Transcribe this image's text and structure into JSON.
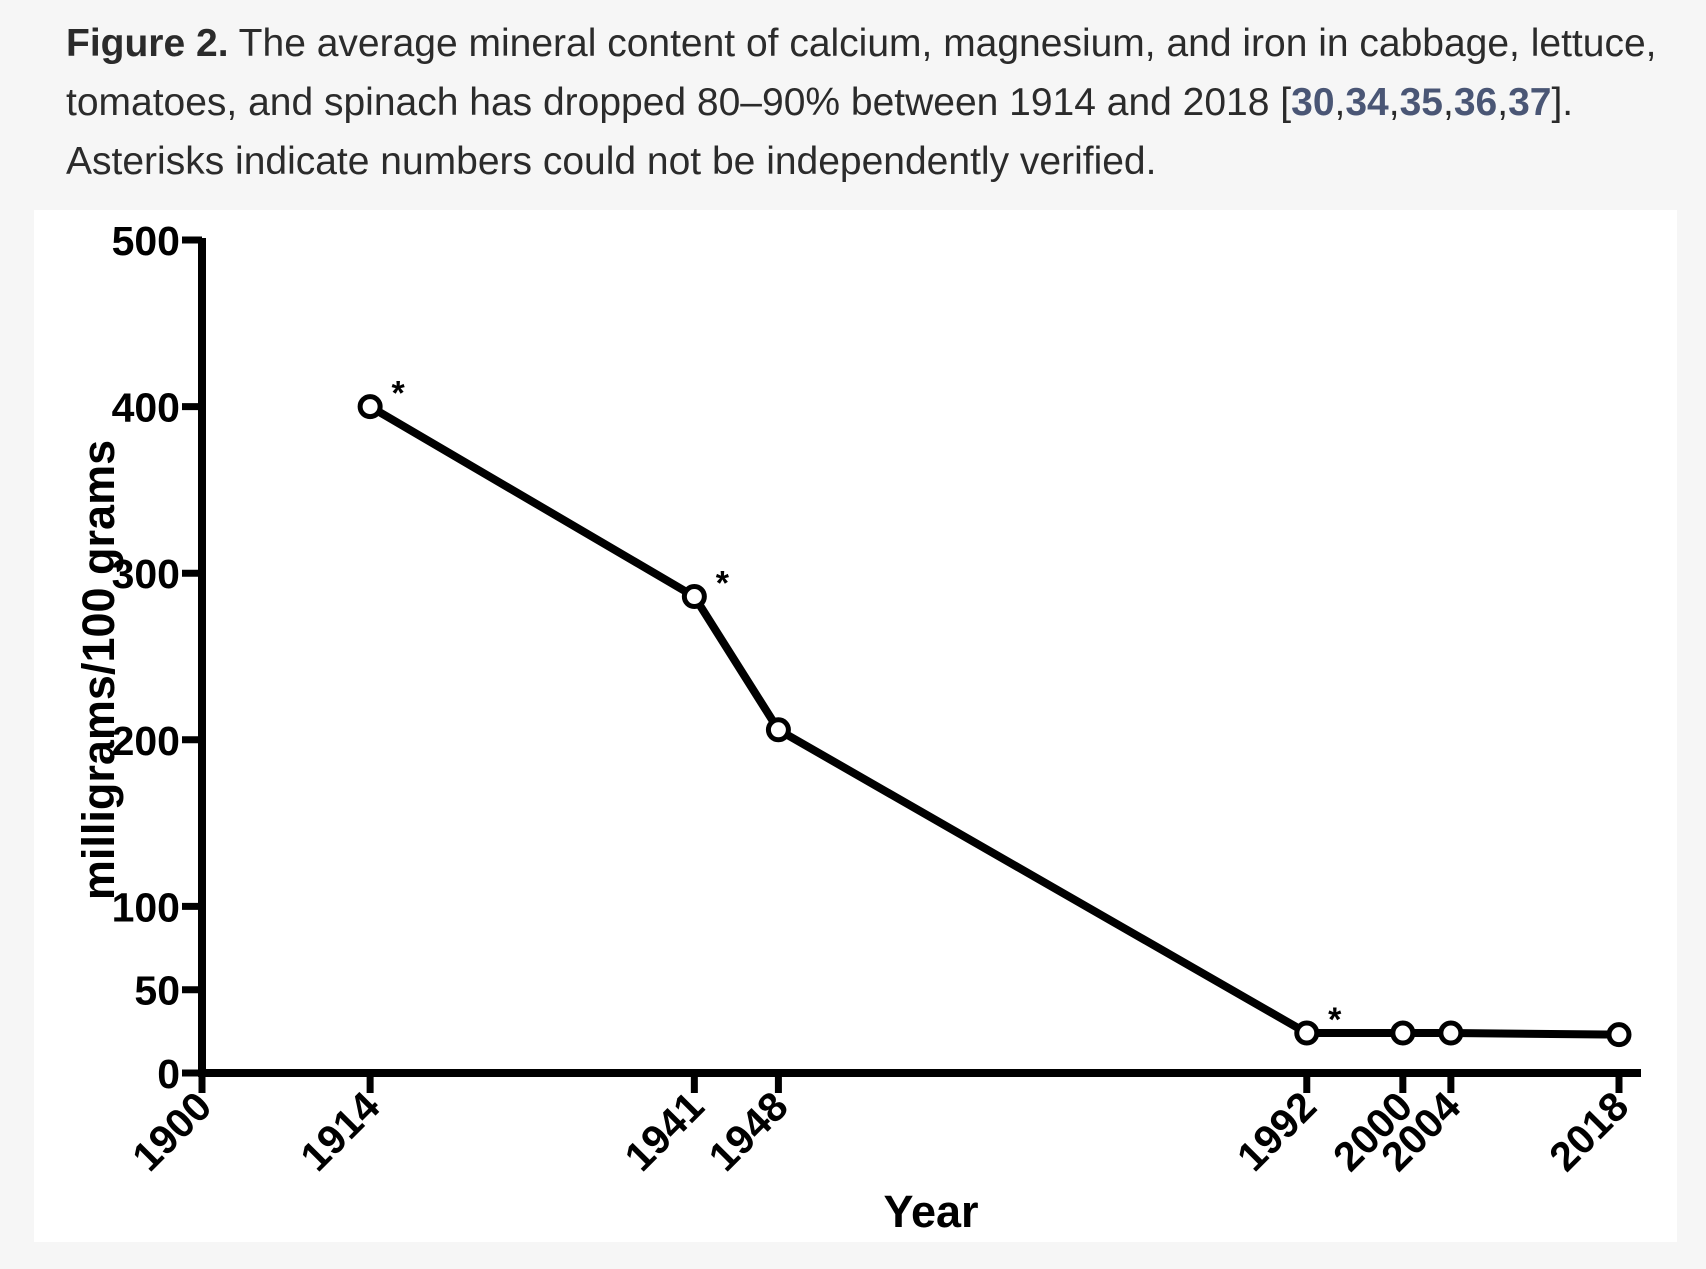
{
  "caption": {
    "label": "Figure 2.",
    "text": " The average mineral content of calcium, magnesium, and iron in cabbage, lettuce, tomatoes, and spinach has dropped 80–90% between 1914 and 2018 [",
    "refs": [
      "30",
      "34",
      "35",
      "36",
      "37"
    ],
    "separator": ",",
    "close": "]. Asterisks indicate numbers could not be independently verified."
  },
  "chart_data": {
    "type": "line",
    "title": "",
    "xlabel": "Year",
    "ylabel": "milligrams/100 grams",
    "xlim": [
      1900,
      2019
    ],
    "ylim": [
      0,
      500
    ],
    "x_ticks": [
      1900,
      1914,
      1941,
      1948,
      1992,
      2000,
      2004,
      2018
    ],
    "y_ticks": [
      0,
      50,
      100,
      200,
      300,
      400,
      500
    ],
    "series": [
      {
        "name": "mineral content",
        "x": [
          1914,
          1941,
          1948,
          1992,
          2000,
          2004,
          2018
        ],
        "y": [
          400,
          286,
          206,
          24,
          24,
          24,
          23
        ],
        "asterisk": [
          true,
          true,
          false,
          true,
          false,
          false,
          false
        ]
      }
    ],
    "asterisk_symbol": "*",
    "grid": false,
    "legend": "none",
    "colors": {
      "line": "#000000",
      "marker_fill": "#ffffff"
    }
  }
}
